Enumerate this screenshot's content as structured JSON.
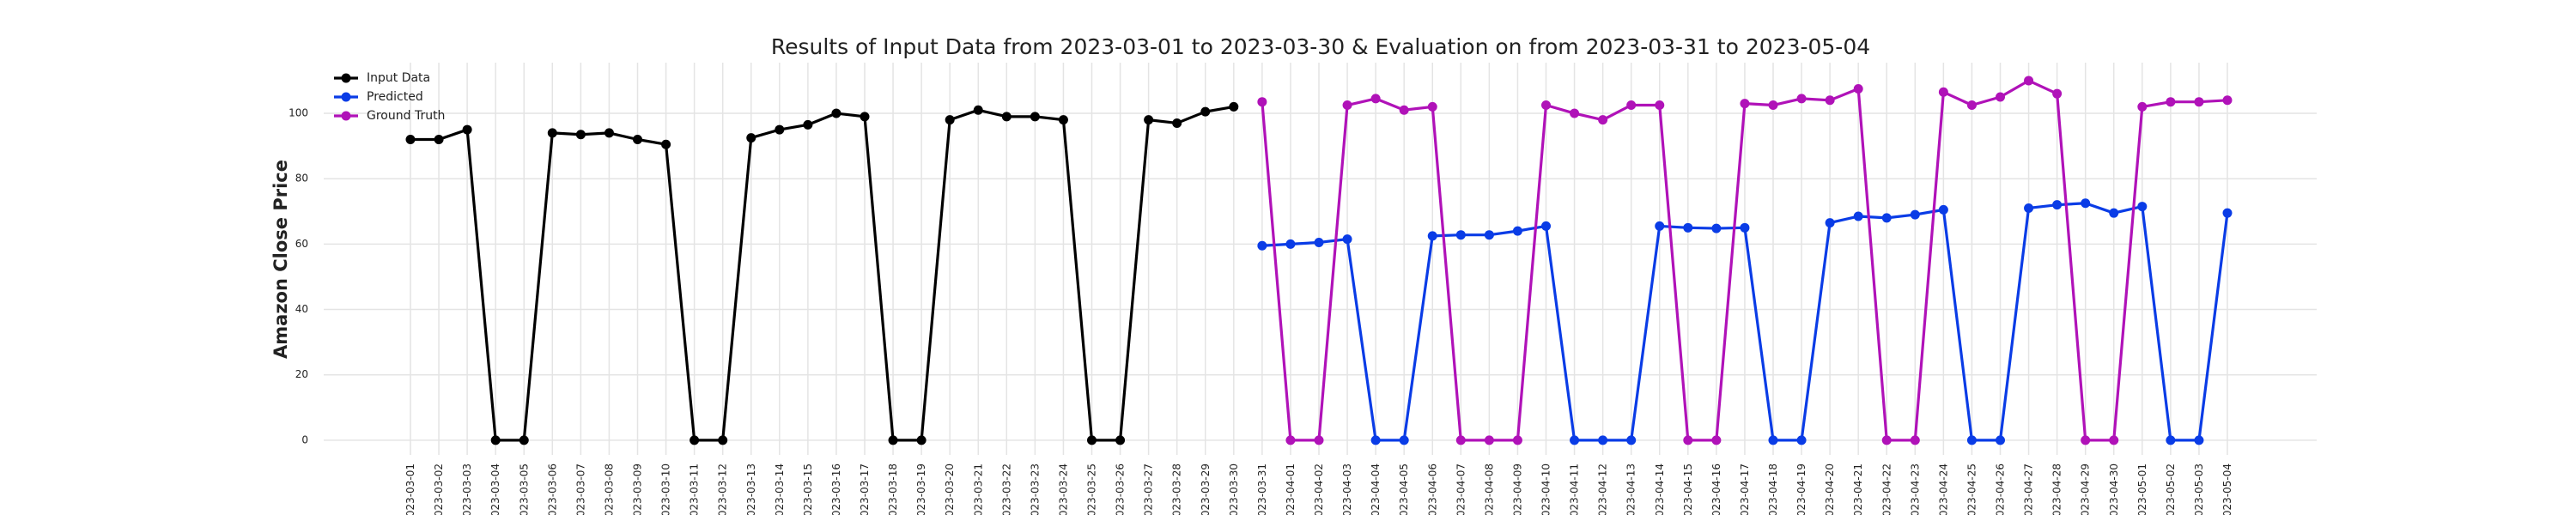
{
  "chart_data": {
    "type": "line",
    "title": "Results of Input Data from 2023-03-01 to 2023-03-30 & Evaluation on from 2023-03-31 to 2023-05-04",
    "ylabel": "Amazon Close Price",
    "categories": [
      "2023-03-01",
      "2023-03-02",
      "2023-03-03",
      "2023-03-04",
      "2023-03-05",
      "2023-03-06",
      "2023-03-07",
      "2023-03-08",
      "2023-03-09",
      "2023-03-10",
      "2023-03-11",
      "2023-03-12",
      "2023-03-13",
      "2023-03-14",
      "2023-03-15",
      "2023-03-16",
      "2023-03-17",
      "2023-03-18",
      "2023-03-19",
      "2023-03-20",
      "2023-03-21",
      "2023-03-22",
      "2023-03-23",
      "2023-03-24",
      "2023-03-25",
      "2023-03-26",
      "2023-03-27",
      "2023-03-28",
      "2023-03-29",
      "2023-03-30",
      "2023-03-31",
      "2023-04-01",
      "2023-04-02",
      "2023-04-03",
      "2023-04-04",
      "2023-04-05",
      "2023-04-06",
      "2023-04-07",
      "2023-04-08",
      "2023-04-09",
      "2023-04-10",
      "2023-04-11",
      "2023-04-12",
      "2023-04-13",
      "2023-04-14",
      "2023-04-15",
      "2023-04-16",
      "2023-04-17",
      "2023-04-18",
      "2023-04-19",
      "2023-04-20",
      "2023-04-21",
      "2023-04-22",
      "2023-04-23",
      "2023-04-24",
      "2023-04-25",
      "2023-04-26",
      "2023-04-27",
      "2023-04-28",
      "2023-04-29",
      "2023-04-30",
      "2023-05-01",
      "2023-05-02",
      "2023-05-03",
      "2023-05-04"
    ],
    "series": [
      {
        "name": "Input Data",
        "color": "#000000",
        "values": [
          92,
          92,
          95,
          0,
          0,
          94,
          93.5,
          94,
          92,
          90.5,
          0,
          0,
          92.5,
          95,
          96.5,
          100,
          99,
          0,
          0,
          98,
          101,
          99,
          99,
          98,
          0,
          0,
          98,
          97,
          100.5,
          102,
          null,
          null,
          null,
          null,
          null,
          null,
          null,
          null,
          null,
          null,
          null,
          null,
          null,
          null,
          null,
          null,
          null,
          null,
          null,
          null,
          null,
          null,
          null,
          null,
          null,
          null,
          null,
          null,
          null,
          null,
          null,
          null,
          null,
          null,
          null
        ]
      },
      {
        "name": "Predicted",
        "color": "#0a3ce6",
        "values": [
          null,
          null,
          null,
          null,
          null,
          null,
          null,
          null,
          null,
          null,
          null,
          null,
          null,
          null,
          null,
          null,
          null,
          null,
          null,
          null,
          null,
          null,
          null,
          null,
          null,
          null,
          null,
          null,
          null,
          null,
          59.5,
          60,
          60.5,
          61.5,
          0,
          0,
          62.5,
          62.8,
          62.8,
          64,
          65.5,
          0,
          0,
          0,
          65.5,
          65,
          64.8,
          65,
          0,
          0,
          66.5,
          68.5,
          68,
          69,
          70.5,
          0,
          0,
          71,
          72,
          72.5,
          69.5,
          71.5,
          0,
          0,
          69.5
        ]
      },
      {
        "name": "Ground Truth",
        "color": "#b012b8",
        "values": [
          null,
          null,
          null,
          null,
          null,
          null,
          null,
          null,
          null,
          null,
          null,
          null,
          null,
          null,
          null,
          null,
          null,
          null,
          null,
          null,
          null,
          null,
          null,
          null,
          null,
          null,
          null,
          null,
          null,
          null,
          103.5,
          0,
          0,
          102.5,
          104.5,
          101,
          102,
          0,
          0,
          0,
          102.5,
          100,
          98,
          102.5,
          102.5,
          0,
          0,
          103,
          102.5,
          104.5,
          104,
          107.5,
          0,
          0,
          106.5,
          102.5,
          105,
          110,
          106,
          0,
          0,
          102,
          103.5,
          103.5,
          104
        ]
      }
    ],
    "ylim": [
      -4.5,
      115.5
    ],
    "yticks": [
      0,
      20,
      40,
      60,
      80,
      100
    ],
    "grid": true,
    "legend": "upper left"
  }
}
